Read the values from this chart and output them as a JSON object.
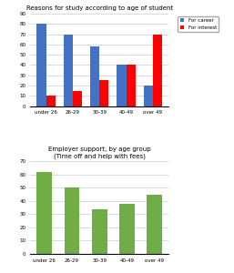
{
  "chart1": {
    "title": "Reasons for study according to age of student",
    "categories": [
      "under 26",
      "26-29",
      "30-39",
      "40-49",
      "over 49"
    ],
    "for_career": [
      80,
      70,
      58,
      40,
      20
    ],
    "for_interest": [
      10,
      15,
      25,
      40,
      70
    ],
    "career_color": "#4472C4",
    "interest_color": "#FF0000",
    "ylim": [
      0,
      90
    ],
    "yticks": [
      0,
      10,
      20,
      30,
      40,
      50,
      60,
      70,
      80,
      90
    ],
    "legend_labels": [
      "For career",
      "For interest"
    ]
  },
  "chart2": {
    "title": "Employer support, by age group\n(Time off and help with fees)",
    "categories": [
      "under 26",
      "26-29",
      "30-39",
      "40-49",
      "over 49"
    ],
    "values": [
      62,
      50,
      34,
      38,
      45
    ],
    "bar_color": "#70AD47",
    "ylim": [
      0,
      70
    ],
    "yticks": [
      0,
      10,
      20,
      30,
      40,
      50,
      60,
      70
    ]
  },
  "background_color": "#FFFFFF",
  "grid_color": "#CCCCCC"
}
